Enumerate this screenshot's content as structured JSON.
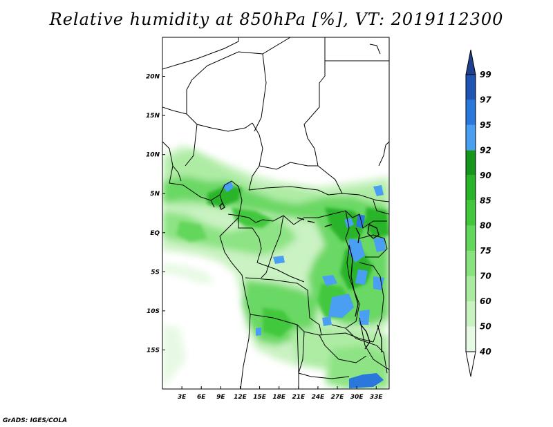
{
  "title": "Relative humidity at 850hPa [%], VT: 2019112300",
  "credit": "GrADS: IGES/COLA",
  "map": {
    "lon_range": [
      0,
      35
    ],
    "lat_range": [
      -20,
      25
    ],
    "lat_ticks": [
      {
        "value": 20,
        "label": "20N"
      },
      {
        "value": 15,
        "label": "15N"
      },
      {
        "value": 10,
        "label": "10N"
      },
      {
        "value": 5,
        "label": "5N"
      },
      {
        "value": 0,
        "label": "EQ"
      },
      {
        "value": -5,
        "label": "5S"
      },
      {
        "value": -10,
        "label": "10S"
      },
      {
        "value": -15,
        "label": "15S"
      }
    ],
    "lon_ticks": [
      {
        "value": 3,
        "label": "3E"
      },
      {
        "value": 6,
        "label": "6E"
      },
      {
        "value": 9,
        "label": "9E"
      },
      {
        "value": 12,
        "label": "12E"
      },
      {
        "value": 15,
        "label": "15E"
      },
      {
        "value": 18,
        "label": "18E"
      },
      {
        "value": 21,
        "label": "21E"
      },
      {
        "value": 24,
        "label": "24E"
      },
      {
        "value": 27,
        "label": "27E"
      },
      {
        "value": 30,
        "label": "30E"
      },
      {
        "value": 33,
        "label": "33E"
      }
    ]
  },
  "colorbar": {
    "levels": [
      "40",
      "50",
      "60",
      "70",
      "75",
      "80",
      "85",
      "90",
      "92",
      "95",
      "97",
      "99"
    ],
    "colors": [
      "#ffffff",
      "#e6f9e3",
      "#c8f2c0",
      "#aaeba0",
      "#88e27e",
      "#63d65c",
      "#42c83d",
      "#2ab42a",
      "#17961e",
      "#4a9ff2",
      "#2a78dc",
      "#1e54b4",
      "#1f3f8f"
    ]
  }
}
